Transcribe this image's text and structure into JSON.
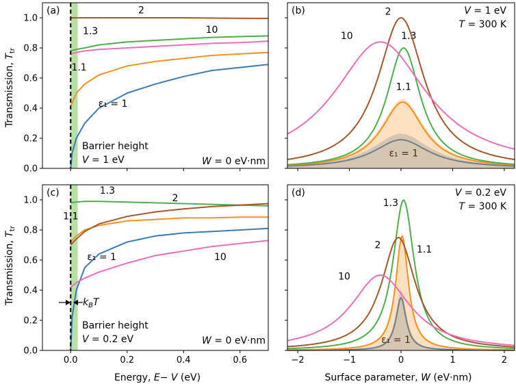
{
  "chart_data": [
    {
      "panel": "(a)",
      "type": "line",
      "xlim": [
        -0.1,
        0.7
      ],
      "ylim": [
        0,
        1.1
      ],
      "xticks": [
        "0.0",
        "0.2",
        "0.4",
        "0.6"
      ],
      "yticks": [
        "0.0",
        "0.2",
        "0.4",
        "0.6",
        "0.8",
        "1.0"
      ],
      "ylabel": "Transmission, T_tr",
      "annotations": [
        "Barrier height",
        "V = 1 eV",
        "W = 0 eV·nm"
      ],
      "shaded_band_x": [
        0,
        0.025
      ],
      "dashed_line_x": 0,
      "series": [
        {
          "name": "ε1 = 1",
          "label": "ε₁ = 1",
          "color": "#3a7ab5",
          "x": [
            0,
            0.005,
            0.02,
            0.05,
            0.1,
            0.2,
            0.3,
            0.4,
            0.5,
            0.6,
            0.7
          ],
          "y": [
            0,
            0.1,
            0.2,
            0.3,
            0.4,
            0.5,
            0.56,
            0.61,
            0.65,
            0.67,
            0.69
          ]
        },
        {
          "name": "1.1",
          "label": "1.1",
          "color": "#f7901e",
          "x": [
            0,
            0.02,
            0.05,
            0.1,
            0.2,
            0.3,
            0.4,
            0.5,
            0.6,
            0.7
          ],
          "y": [
            0.41,
            0.5,
            0.56,
            0.62,
            0.68,
            0.71,
            0.73,
            0.75,
            0.76,
            0.77
          ]
        },
        {
          "name": "1.3",
          "label": "1.3",
          "color": "#4daf4a",
          "x": [
            0,
            0.02,
            0.05,
            0.1,
            0.2,
            0.3,
            0.4,
            0.5,
            0.6,
            0.7
          ],
          "y": [
            0.78,
            0.79,
            0.8,
            0.82,
            0.84,
            0.85,
            0.86,
            0.87,
            0.875,
            0.88
          ]
        },
        {
          "name": "10",
          "label": "10",
          "color": "#f06cb8",
          "x": [
            0,
            0.02,
            0.05,
            0.1,
            0.2,
            0.3,
            0.4,
            0.5,
            0.6,
            0.7
          ],
          "y": [
            0.76,
            0.77,
            0.78,
            0.79,
            0.8,
            0.81,
            0.82,
            0.83,
            0.835,
            0.845
          ]
        },
        {
          "name": "2",
          "label": "2",
          "color": "#a65628",
          "x": [
            0,
            0.1,
            0.2,
            0.3,
            0.4,
            0.5,
            0.6,
            0.7
          ],
          "y": [
            1.0,
            1.0,
            1.0,
            1.0,
            1.0,
            0.998,
            0.997,
            0.996
          ]
        }
      ]
    },
    {
      "panel": "(b)",
      "type": "line",
      "xlim": [
        -2.2,
        2.2
      ],
      "ylim": [
        0,
        1.1
      ],
      "xticks": [
        "−2",
        "−1",
        "0",
        "1",
        "2"
      ],
      "annotations": [
        "V = 1 eV",
        "T = 300 K"
      ],
      "series": [
        {
          "name": "ε1 = 1",
          "label": "ε₁ = 1",
          "color": "#3a7ab5",
          "type": "lorentzian",
          "peak": 0.19,
          "center": 0.0,
          "hwhm": 0.65,
          "thermal_band_peak": 0.23
        },
        {
          "name": "1.1",
          "label": "1.1",
          "color": "#f7901e",
          "type": "lorentzian",
          "peak": 0.44,
          "center": 0.03,
          "hwhm": 0.5,
          "thermal_band_peak": 0.46
        },
        {
          "name": "1.3",
          "label": "1.3",
          "color": "#4daf4a",
          "type": "lorentzian",
          "peak": 0.8,
          "center": 0.05,
          "hwhm": 0.4
        },
        {
          "name": "2",
          "label": "2",
          "color": "#a65628",
          "type": "lorentzian",
          "peak": 1.0,
          "center": 0.0,
          "hwhm": 0.55
        },
        {
          "name": "10",
          "label": "10",
          "color": "#f06cb8",
          "type": "lorentzian",
          "peak": 0.84,
          "center": -0.4,
          "hwhm": 1.1
        }
      ]
    },
    {
      "panel": "(c)",
      "type": "line",
      "xlim": [
        -0.1,
        0.7
      ],
      "ylim": [
        0,
        1.1
      ],
      "xticks": [
        "0.0",
        "0.2",
        "0.4",
        "0.6"
      ],
      "yticks": [
        "0.0",
        "0.2",
        "0.4",
        "0.6",
        "0.8",
        "1.0"
      ],
      "xlabel": "Energy, E− V (eV)",
      "ylabel": "Transmission, T_tr",
      "annotations": [
        "Barrier height",
        "V = 0.2 eV",
        "W = 0 eV·nm",
        "k_B T"
      ],
      "shaded_band_x": [
        0,
        0.025
      ],
      "dashed_line_x": 0,
      "series": [
        {
          "name": "ε1 = 1",
          "label": "ε₁ = 1",
          "color": "#3a7ab5",
          "x": [
            0,
            0.005,
            0.02,
            0.05,
            0.1,
            0.2,
            0.3,
            0.4,
            0.5,
            0.6,
            0.7
          ],
          "y": [
            0,
            0.22,
            0.4,
            0.55,
            0.64,
            0.72,
            0.76,
            0.78,
            0.79,
            0.8,
            0.81
          ]
        },
        {
          "name": "1.1",
          "label": "1.1",
          "color": "#f7901e",
          "x": [
            0,
            0.02,
            0.05,
            0.1,
            0.2,
            0.3,
            0.4,
            0.5,
            0.6,
            0.7
          ],
          "y": [
            0.72,
            0.76,
            0.8,
            0.83,
            0.86,
            0.87,
            0.88,
            0.88,
            0.885,
            0.885
          ]
        },
        {
          "name": "1.3",
          "label": "1.3",
          "color": "#4daf4a",
          "x": [
            0,
            0.02,
            0.05,
            0.1,
            0.2,
            0.3,
            0.4,
            0.5,
            0.6,
            0.7
          ],
          "y": [
            0.98,
            0.985,
            0.99,
            0.99,
            0.985,
            0.98,
            0.975,
            0.97,
            0.965,
            0.96
          ]
        },
        {
          "name": "2",
          "label": "2",
          "color": "#a65628",
          "x": [
            0,
            0.02,
            0.05,
            0.1,
            0.2,
            0.3,
            0.4,
            0.5,
            0.6,
            0.7
          ],
          "y": [
            0.7,
            0.74,
            0.79,
            0.84,
            0.89,
            0.92,
            0.94,
            0.955,
            0.965,
            0.975
          ]
        },
        {
          "name": "10",
          "label": "10",
          "color": "#f06cb8",
          "x": [
            0,
            0.02,
            0.05,
            0.1,
            0.2,
            0.3,
            0.4,
            0.5,
            0.6,
            0.7
          ],
          "y": [
            0.42,
            0.45,
            0.48,
            0.52,
            0.58,
            0.63,
            0.66,
            0.69,
            0.71,
            0.73
          ]
        }
      ]
    },
    {
      "panel": "(d)",
      "type": "line",
      "xlim": [
        -2.2,
        2.2
      ],
      "ylim": [
        0,
        1.1
      ],
      "xticks": [
        "−2",
        "−1",
        "0",
        "1",
        "2"
      ],
      "xlabel": "Surface parameter, W (eV·nm)",
      "annotations": [
        "V = 0.2 eV",
        "T = 300 K"
      ],
      "series": [
        {
          "name": "ε1 = 1",
          "label": "ε₁ = 1",
          "color": "#3a7ab5",
          "type": "lorentzian",
          "peak": 0.35,
          "center": 0.0,
          "hwhm": 0.12,
          "thermal_band_peak": 0.4
        },
        {
          "name": "1.1",
          "label": "1.1",
          "color": "#f7901e",
          "type": "lorentzian",
          "peak": 0.76,
          "center": 0.02,
          "hwhm": 0.15,
          "thermal_band_peak": 0.78
        },
        {
          "name": "1.3",
          "label": "1.3",
          "color": "#4daf4a",
          "type": "lorentzian",
          "peak": 1.0,
          "center": 0.05,
          "hwhm": 0.25
        },
        {
          "name": "2",
          "label": "2",
          "color": "#a65628",
          "type": "lorentzian",
          "peak": 0.75,
          "center": -0.05,
          "hwhm": 0.4
        },
        {
          "name": "10",
          "label": "10",
          "color": "#f06cb8",
          "type": "lorentzian",
          "peak": 0.5,
          "center": -0.4,
          "hwhm": 0.7
        }
      ]
    }
  ],
  "labels": {
    "a_tag": "(a)",
    "b_tag": "(b)",
    "c_tag": "(c)",
    "d_tag": "(d)",
    "ylabel_top": "Transmission, T_tr",
    "ylabel_bottom": "Transmission, T_tr",
    "xlabel_left": "Energy, E− V (eV)",
    "xlabel_right": "Surface parameter, W (eV·nm)",
    "a_barrier": "Barrier height",
    "a_v": "V = 1 eV",
    "a_w": "W = 0 eV·nm",
    "b_v": "V = 1 eV",
    "b_t": "T = 300 K",
    "c_barrier": "Barrier height",
    "c_v": "V = 0.2 eV",
    "c_w": "W = 0 eV·nm",
    "c_kbt": "k_B T",
    "d_v": "V = 0.2 eV",
    "d_t": "T = 300 K"
  }
}
